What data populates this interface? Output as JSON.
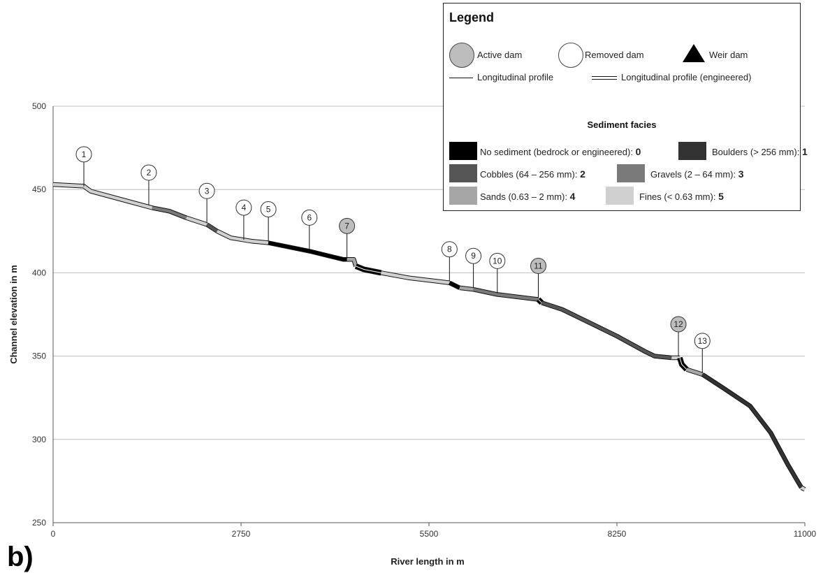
{
  "colors": {
    "facies_0": "#000000",
    "facies_1": "#333333",
    "facies_2": "#555555",
    "facies_3": "#7a7a7a",
    "facies_4": "#a6a6a6",
    "facies_5": "#d0d0d0",
    "active_dam": "#bdbdbd",
    "removed_dam": "#ffffff",
    "grid": "#bfbfbf"
  },
  "panel_label": "b)",
  "legend": {
    "title": "Legend",
    "active_dam": "Active dam",
    "removed_dam": "Removed dam",
    "weir_dam": "Weir dam",
    "profile": "Longitudinal profile",
    "profile_engineered": "Longitudinal profile (engineered)",
    "facies_title": "Sediment facies",
    "facies": [
      {
        "label": "No sediment (bedrock or engineered):",
        "code": "0"
      },
      {
        "label": "Boulders (> 256 mm):",
        "code": "1"
      },
      {
        "label": "Cobbles (64 – 256 mm):",
        "code": "2"
      },
      {
        "label": "Gravels (2 – 64 mm):",
        "code": "3"
      },
      {
        "label": "Sands (0.63 – 2 mm):",
        "code": "4"
      },
      {
        "label": "Fines (< 0.63 mm):",
        "code": "5"
      }
    ]
  },
  "chart_data": {
    "type": "line",
    "title": "",
    "xlabel": "River length in m",
    "ylabel": "Channel elevation in m",
    "xlim": [
      0,
      11000
    ],
    "ylim": [
      250,
      500
    ],
    "xticks": [
      0,
      2750,
      5500,
      8250,
      11000
    ],
    "yticks": [
      250,
      300,
      350,
      400,
      450,
      500
    ],
    "grid": "horizontal",
    "legend_position": "top-right",
    "profile_segments": [
      {
        "facies": 5,
        "engineered": false,
        "points": [
          [
            0,
            453
          ],
          [
            450,
            452
          ],
          [
            550,
            449
          ],
          [
            1000,
            444
          ],
          [
            1450,
            439
          ]
        ]
      },
      {
        "facies": 3,
        "engineered": false,
        "points": [
          [
            1450,
            439
          ],
          [
            1700,
            437
          ],
          [
            1950,
            433
          ]
        ]
      },
      {
        "facies": 5,
        "engineered": false,
        "points": [
          [
            1950,
            433
          ],
          [
            2250,
            429
          ]
        ]
      },
      {
        "facies": 2,
        "engineered": false,
        "points": [
          [
            2250,
            429
          ],
          [
            2400,
            425
          ]
        ]
      },
      {
        "facies": 5,
        "engineered": false,
        "points": [
          [
            2400,
            425
          ],
          [
            2600,
            421
          ],
          [
            2900,
            419
          ],
          [
            3150,
            418
          ]
        ]
      },
      {
        "facies": 0,
        "engineered": false,
        "points": [
          [
            3150,
            418
          ],
          [
            3750,
            413
          ],
          [
            4050,
            410
          ],
          [
            4250,
            408
          ],
          [
            4300,
            408
          ]
        ]
      },
      {
        "facies": 4,
        "engineered": false,
        "points": [
          [
            4300,
            408
          ],
          [
            4400,
            408
          ],
          [
            4430,
            404
          ]
        ]
      },
      {
        "facies": 0,
        "engineered": true,
        "points": [
          [
            4430,
            404
          ],
          [
            4550,
            402
          ],
          [
            4800,
            400
          ]
        ]
      },
      {
        "facies": 5,
        "engineered": false,
        "points": [
          [
            4800,
            400
          ],
          [
            5200,
            397
          ],
          [
            5600,
            395
          ],
          [
            5800,
            394
          ]
        ]
      },
      {
        "facies": 0,
        "engineered": false,
        "points": [
          [
            5800,
            394
          ],
          [
            5950,
            391
          ]
        ]
      },
      {
        "facies": 4,
        "engineered": false,
        "points": [
          [
            5950,
            391
          ],
          [
            6150,
            390
          ]
        ]
      },
      {
        "facies": 3,
        "engineered": false,
        "points": [
          [
            6150,
            390
          ],
          [
            6500,
            387
          ],
          [
            7100,
            384
          ]
        ]
      },
      {
        "facies": 0,
        "engineered": true,
        "points": [
          [
            7100,
            384
          ],
          [
            7150,
            382
          ]
        ]
      },
      {
        "facies": 2,
        "engineered": false,
        "points": [
          [
            7150,
            382
          ],
          [
            7450,
            378
          ],
          [
            7800,
            371
          ],
          [
            8250,
            362
          ],
          [
            8650,
            353
          ],
          [
            8800,
            350
          ],
          [
            9050,
            349
          ]
        ]
      },
      {
        "facies": 5,
        "engineered": false,
        "points": [
          [
            9050,
            349
          ],
          [
            9170,
            349
          ]
        ]
      },
      {
        "facies": 0,
        "engineered": true,
        "points": [
          [
            9170,
            349
          ],
          [
            9200,
            345
          ],
          [
            9270,
            342
          ]
        ]
      },
      {
        "facies": 4,
        "engineered": false,
        "points": [
          [
            9270,
            342
          ],
          [
            9500,
            339
          ]
        ]
      },
      {
        "facies": 1,
        "engineered": false,
        "points": [
          [
            9500,
            339
          ],
          [
            9800,
            331
          ],
          [
            10200,
            320
          ],
          [
            10500,
            304
          ],
          [
            10750,
            285
          ],
          [
            10950,
            271
          ]
        ]
      },
      {
        "facies": 5,
        "engineered": false,
        "points": [
          [
            10950,
            271
          ],
          [
            11000,
            270
          ]
        ]
      }
    ],
    "dams": [
      {
        "id": "1",
        "type": "removed",
        "x": 450,
        "y": 451
      },
      {
        "id": "2",
        "type": "removed",
        "x": 1400,
        "y": 440
      },
      {
        "id": "3",
        "type": "removed",
        "x": 2250,
        "y": 429
      },
      {
        "id": "4",
        "type": "removed",
        "x": 2790,
        "y": 419
      },
      {
        "id": "5",
        "type": "removed",
        "x": 3150,
        "y": 418
      },
      {
        "id": "6",
        "type": "removed",
        "x": 3750,
        "y": 413
      },
      {
        "id": "7",
        "type": "active",
        "x": 4300,
        "y": 408
      },
      {
        "id": "8",
        "type": "removed",
        "x": 5800,
        "y": 394
      },
      {
        "id": "9",
        "type": "removed",
        "x": 6150,
        "y": 390
      },
      {
        "id": "10",
        "type": "removed",
        "x": 6500,
        "y": 387
      },
      {
        "id": "11",
        "type": "active",
        "x": 7100,
        "y": 384
      },
      {
        "id": "12",
        "type": "active",
        "x": 9150,
        "y": 349
      },
      {
        "id": "13",
        "type": "removed",
        "x": 9500,
        "y": 339
      }
    ]
  }
}
